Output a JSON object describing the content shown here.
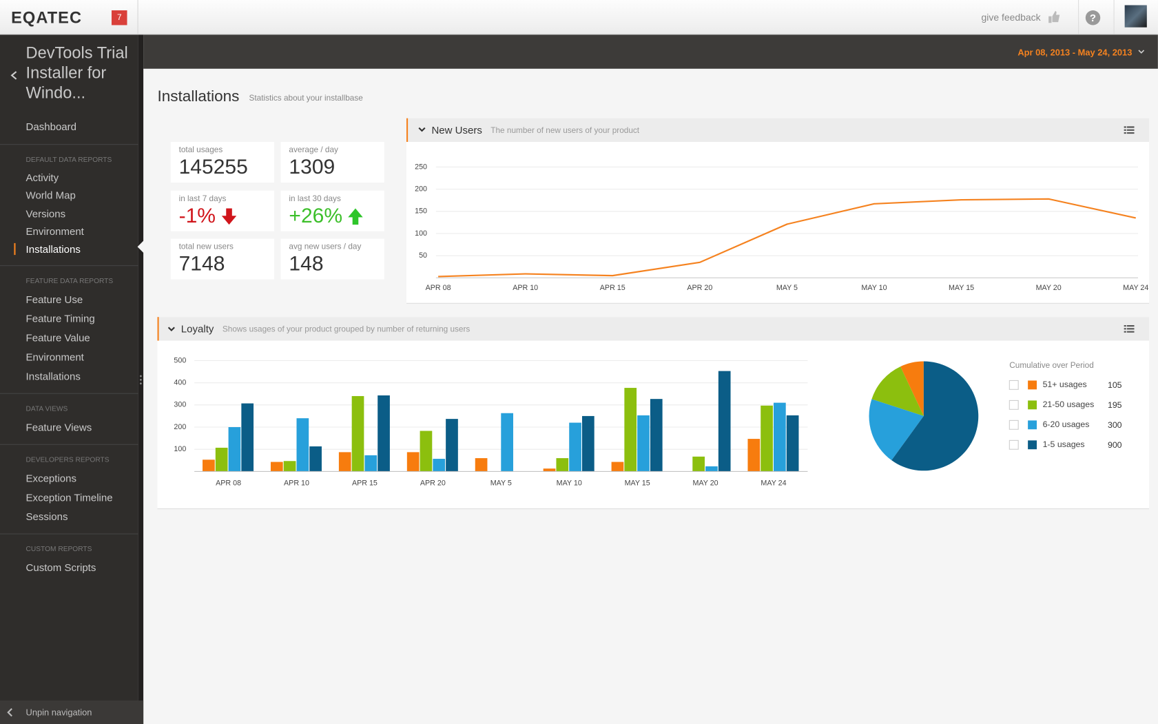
{
  "header": {
    "brand": "EQATEC",
    "badge": "7",
    "feedback": "give feedback"
  },
  "toolbar": {
    "date_range": "Apr 08, 2013 - May 24, 2013"
  },
  "sidebar": {
    "app_title": "DevTools Trial Installer for Windo...",
    "dashboard": "Dashboard",
    "sections": [
      {
        "title": "DEFAULT DATA REPORTS",
        "items": [
          "Activity",
          "World Map",
          "Versions",
          "Environment",
          "Installations"
        ]
      },
      {
        "title": "FEATURE DATA REPORTS",
        "items": [
          "Feature Use",
          "Feature Timing",
          "Feature Value",
          "Environment",
          "Installations"
        ]
      },
      {
        "title": "DATA VIEWS",
        "items": [
          "Feature Views"
        ]
      },
      {
        "title": "DEVELOPERS REPORTS",
        "items": [
          "Exceptions",
          "Exception Timeline",
          "Sessions"
        ]
      },
      {
        "title": "CUSTOM REPORTS",
        "items": [
          "Custom Scripts"
        ]
      }
    ],
    "unpin": "Unpin navigation"
  },
  "page": {
    "title": "Installations",
    "subtitle": "Statistics about your installbase"
  },
  "stats": [
    {
      "label": "total usages",
      "value": 145255
    },
    {
      "label": "average / day",
      "value": 1309
    },
    {
      "label": "in last 7 days",
      "value": "-1%"
    },
    {
      "label": "in last 30 days",
      "value": "+26%"
    },
    {
      "label": "total new users",
      "value": 7148
    },
    {
      "label": "avg new users / day",
      "value": 148
    }
  ],
  "chart_data": [
    {
      "type": "line",
      "title": "New Users",
      "subtitle": "The number of new users of your product",
      "categories": [
        "APR 08",
        "APR 10",
        "APR 15",
        "APR 20",
        "MAY 5",
        "MAY 10",
        "MAY 15",
        "MAY 20",
        "MAY 24"
      ],
      "values": [
        3,
        9,
        5,
        35,
        121,
        167,
        176,
        178,
        135
      ],
      "color": "#f5821f",
      "ylim": [
        0,
        250
      ],
      "yticks": [
        50,
        100,
        150,
        200,
        250
      ],
      "grid": true
    },
    {
      "type": "bar",
      "title": "Loyalty",
      "subtitle": "Shows usages of your product grouped by number of returning users",
      "categories": [
        "APR 08",
        "APR 10",
        "APR 15",
        "APR 20",
        "MAY 5",
        "MAY 10",
        "MAY 15",
        "MAY 20",
        "MAY 24"
      ],
      "series": [
        {
          "color": "#f77c0e",
          "values": [
            53,
            43,
            87,
            87,
            60,
            13,
            43,
            0,
            147
          ]
        },
        {
          "color": "#8cbf0e",
          "values": [
            107,
            47,
            340,
            183,
            0,
            60,
            377,
            67,
            297
          ]
        },
        {
          "color": "#27a0db",
          "values": [
            200,
            240,
            73,
            57,
            263,
            220,
            253,
            23,
            310
          ]
        },
        {
          "color": "#0b5d87",
          "values": [
            307,
            113,
            343,
            237,
            0,
            250,
            327,
            453,
            253
          ]
        }
      ],
      "ylim": [
        0,
        500
      ],
      "yticks": [
        100,
        200,
        300,
        400,
        500
      ],
      "grid": true
    },
    {
      "type": "pie",
      "title": "Cumulative over Period",
      "categories": [
        "51+ usages",
        "21-50 usages",
        "6-20 usages",
        "1-5 usages"
      ],
      "values": [
        105,
        195,
        300,
        900
      ],
      "colors": [
        "#f77c0e",
        "#8cbf0e",
        "#27a0db",
        "#0b5d87"
      ]
    }
  ]
}
